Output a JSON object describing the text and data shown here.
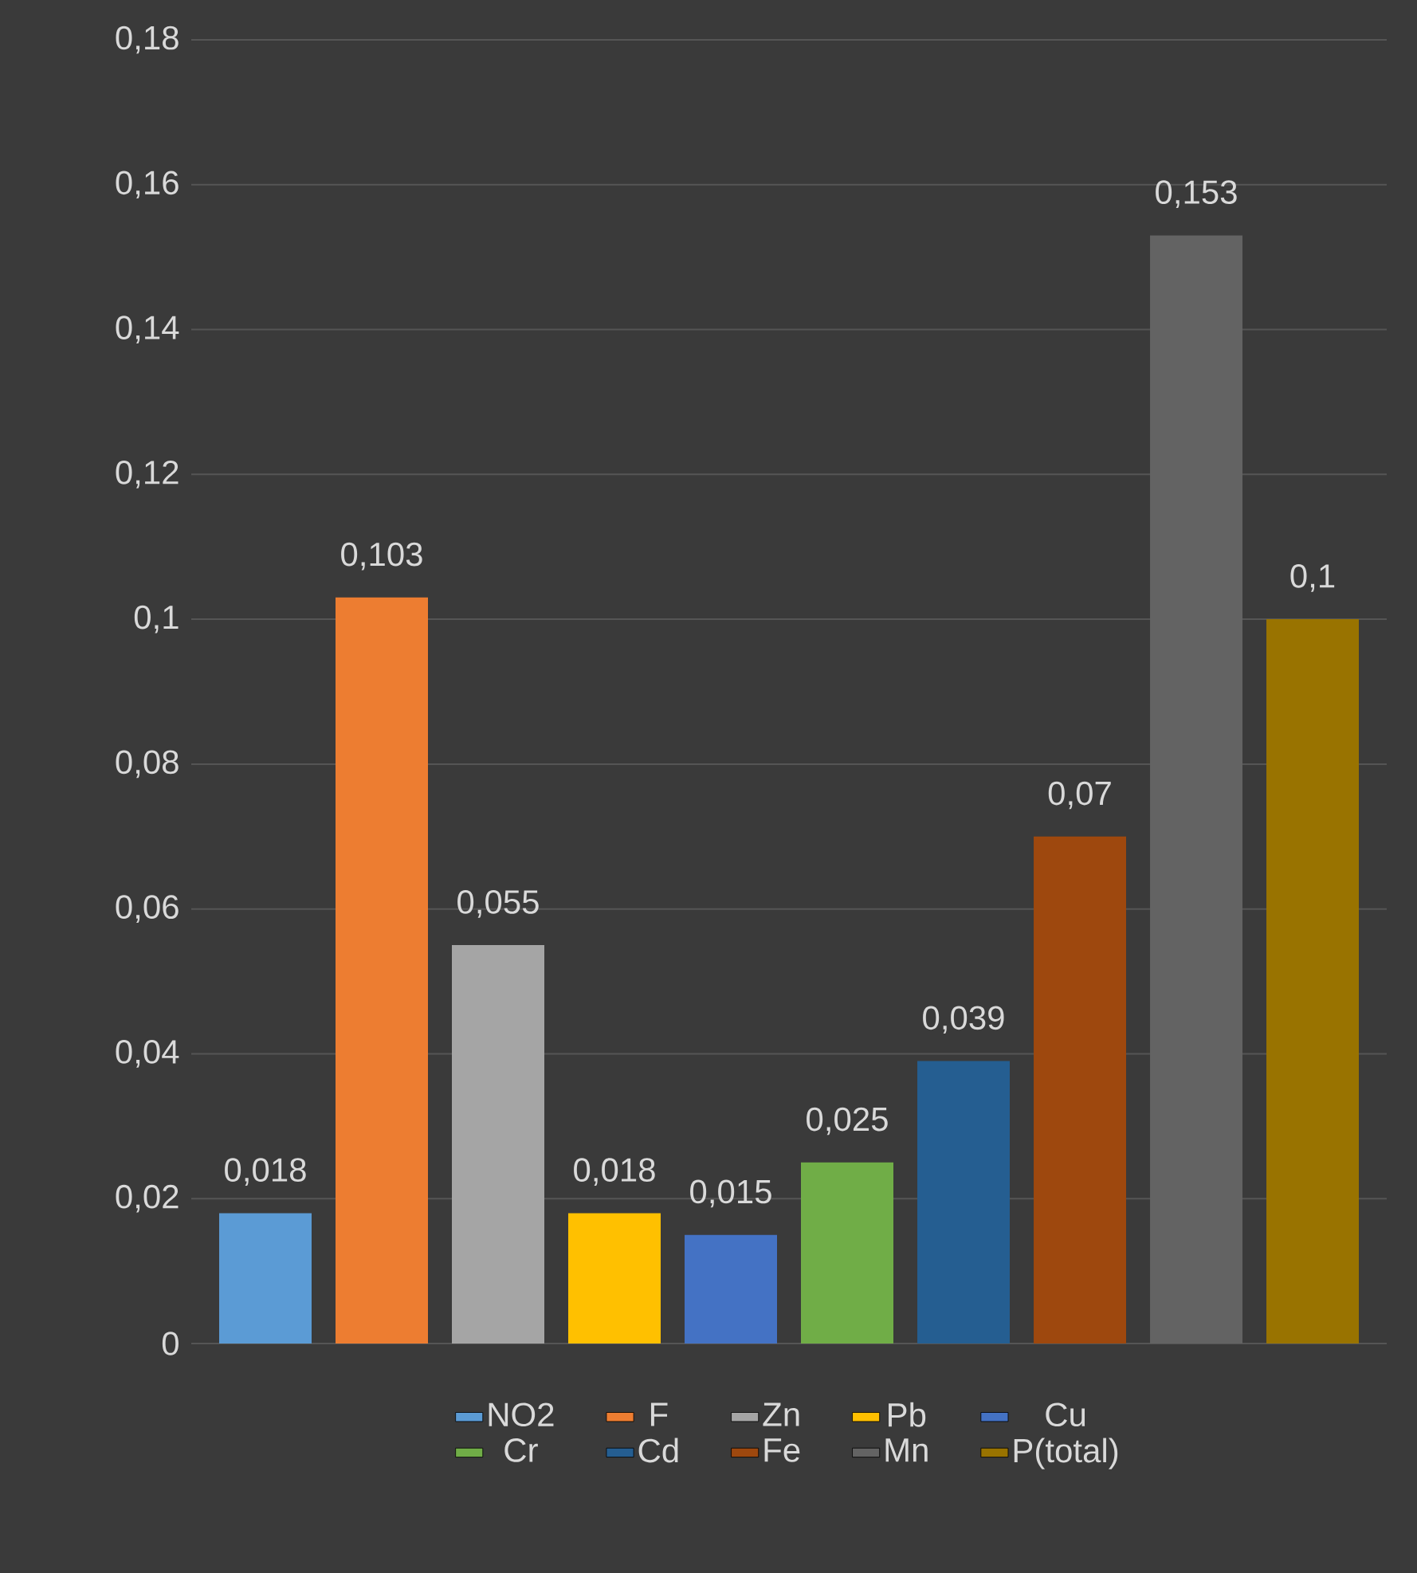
{
  "chart_data": {
    "type": "bar",
    "categories": [
      null
    ],
    "series": [
      {
        "name": "NO2",
        "color": "#5b9bd5",
        "values": [
          0.018
        ],
        "value_labels": [
          "0,018"
        ]
      },
      {
        "name": "F",
        "color": "#ed7d31",
        "values": [
          0.103
        ],
        "value_labels": [
          "0,103"
        ]
      },
      {
        "name": "Zn",
        "color": "#a5a5a5",
        "values": [
          0.055
        ],
        "value_labels": [
          "0,055"
        ]
      },
      {
        "name": "Pb",
        "color": "#ffc000",
        "values": [
          0.018
        ],
        "value_labels": [
          "0,018"
        ]
      },
      {
        "name": "Cu",
        "color": "#4472c4",
        "values": [
          0.015
        ],
        "value_labels": [
          "0,015"
        ]
      },
      {
        "name": "Cr",
        "color": "#70ad47",
        "values": [
          0.025
        ],
        "value_labels": [
          "0,025"
        ]
      },
      {
        "name": "Cd",
        "color": "#255e91",
        "values": [
          0.039
        ],
        "value_labels": [
          "0,039"
        ]
      },
      {
        "name": "Fe",
        "color": "#9e480e",
        "values": [
          0.07
        ],
        "value_labels": [
          "0,07"
        ]
      },
      {
        "name": "Mn",
        "color": "#636363",
        "values": [
          0.153
        ],
        "value_labels": [
          "0,153"
        ]
      },
      {
        "name": "P(total)",
        "color": "#997300",
        "values": [
          0.1
        ],
        "value_labels": [
          "0,1"
        ]
      }
    ],
    "ylim": [
      0,
      0.18
    ],
    "yticks": [
      0,
      {
        "value": 0.02,
        "label": "0,02"
      },
      {
        "value": 0.04,
        "label": "0,04"
      },
      {
        "value": 0.06,
        "label": "0,06"
      },
      {
        "value": 0.08,
        "label": "0,08"
      },
      {
        "value": 0.1,
        "label": "0,1"
      },
      {
        "value": 0.12,
        "label": "0,12"
      },
      {
        "value": 0.14,
        "label": "0,14"
      },
      {
        "value": 0.16,
        "label": "0,16"
      },
      {
        "value": 0.18,
        "label": "0,18"
      }
    ],
    "grid": "y",
    "legend": "bottom"
  }
}
